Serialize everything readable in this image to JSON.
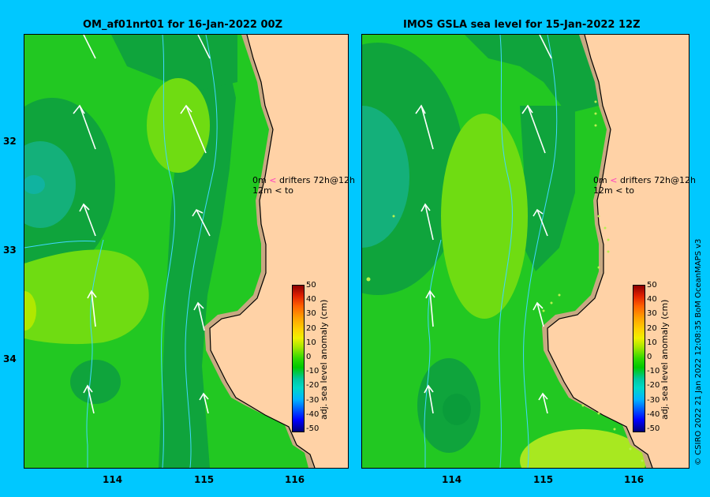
{
  "left_panel": {
    "title": "OM_af01nrt01 for 16-Jan-2022 00Z"
  },
  "right_panel": {
    "title": "IMOS GSLA sea level  for 15-Jan-2022 12Z"
  },
  "y_ticks": [
    "32",
    "33",
    "34"
  ],
  "x_ticks": [
    "114",
    "115",
    "116"
  ],
  "colorbar": {
    "label": "adj. sea level anomaly (cm)",
    "ticks": [
      "50",
      "40",
      "30",
      "20",
      "10",
      "0",
      "-10",
      "-20",
      "-30",
      "-40",
      "-50"
    ]
  },
  "legend": {
    "row1_value": "0m",
    "row1_arrow": "<",
    "row1_text": "drifters 72h@12h",
    "row2_value": "12m",
    "row2_arrow": "<",
    "row2_text": "to"
  },
  "credit": "© CSIRO 2022   21 Jan 2022 12:08:35 BoM OceanMAPS v3",
  "colors": {
    "background": "#00c8ff",
    "land": "#ffd2a6",
    "coast_fill": "#c8a882",
    "sea_base": "#22c822",
    "sea_light": "#6fdc12",
    "sea_dark": "#0a9e3a",
    "sea_teal": "#10b090",
    "drifter_marker": "#ff40c0"
  }
}
